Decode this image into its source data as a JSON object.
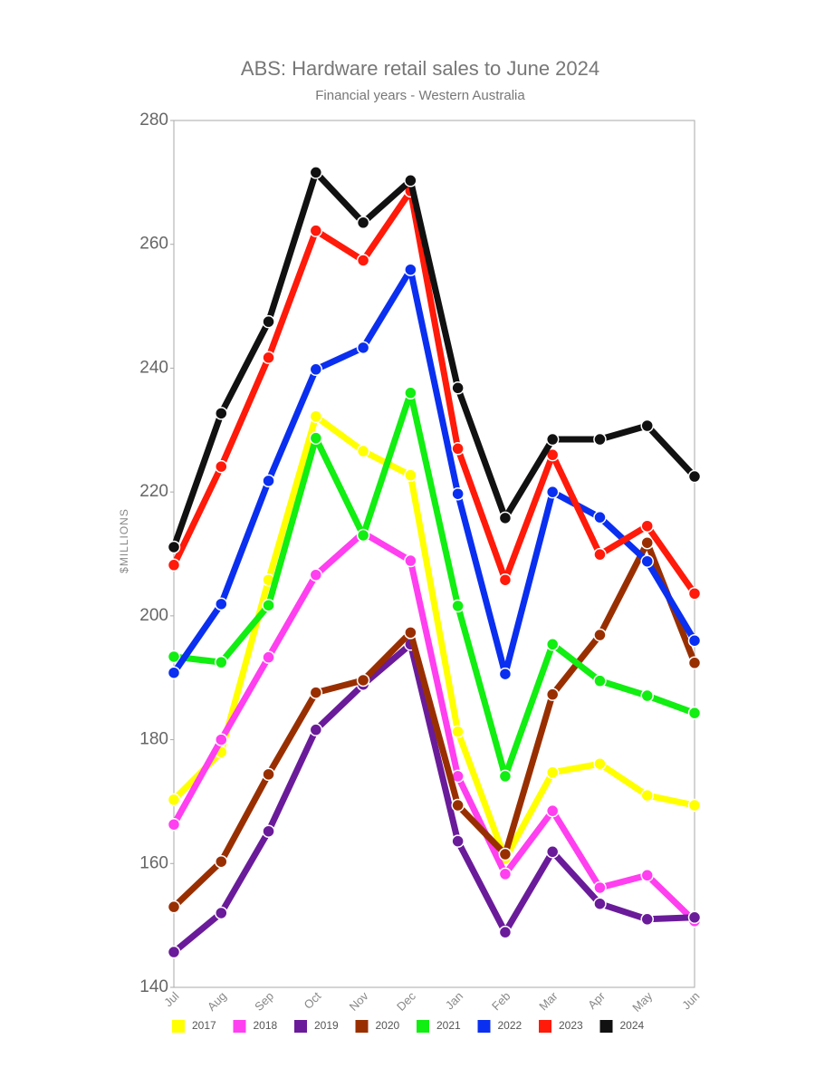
{
  "chart_data": {
    "type": "line",
    "title": "ABS: Hardware retail sales to June 2024",
    "subtitle": "Financial years - Western Australia",
    "y_label": "$MILLIONS",
    "categories": [
      "Jul",
      "Aug",
      "Sep",
      "Oct",
      "Nov",
      "Dec",
      "Jan",
      "Feb",
      "Mar",
      "Apr",
      "May",
      "Jun"
    ],
    "ylim": [
      140,
      280
    ],
    "yticks": [
      140,
      160,
      180,
      200,
      220,
      240,
      260,
      280
    ],
    "grid": false,
    "legend": "bottom",
    "series": [
      {
        "name": "2017",
        "color": "#ffff00",
        "values": [
          170.3,
          178,
          205.8,
          232.2,
          226.6,
          222.7,
          181.3,
          160.8,
          174.7,
          176.1,
          171,
          169.4
        ]
      },
      {
        "name": "2018",
        "color": "#ff3ff0",
        "values": [
          166.3,
          180,
          193.3,
          206.6,
          213.4,
          208.9,
          174.1,
          158.3,
          168.5,
          156.1,
          158.1,
          150.7
        ]
      },
      {
        "name": "2019",
        "color": "#6a1b9a",
        "values": [
          145.7,
          152,
          165.2,
          181.6,
          188.9,
          195.4,
          163.6,
          148.9,
          161.9,
          153.5,
          151,
          151.3
        ]
      },
      {
        "name": "2020",
        "color": "#992f00",
        "values": [
          153,
          160.3,
          174.4,
          187.6,
          189.6,
          197.3,
          169.4,
          161.5,
          187.3,
          196.9,
          211.8,
          192.4
        ]
      },
      {
        "name": "2021",
        "color": "#11ee11",
        "values": [
          193.4,
          192.5,
          201.7,
          228.7,
          213,
          236,
          201.6,
          174.1,
          195.4,
          189.5,
          187.1,
          184.3
        ]
      },
      {
        "name": "2022",
        "color": "#0a2ff0",
        "values": [
          190.8,
          201.9,
          221.8,
          239.8,
          243.3,
          255.9,
          219.7,
          190.6,
          220,
          215.9,
          208.8,
          196
        ]
      },
      {
        "name": "2023",
        "color": "#ff1a0a",
        "values": [
          208.2,
          224.1,
          241.7,
          262.2,
          257.4,
          268.6,
          227,
          205.8,
          226,
          209.9,
          214.5,
          203.6
        ]
      },
      {
        "name": "2024",
        "color": "#111111",
        "values": [
          211.1,
          232.7,
          247.5,
          271.6,
          263.5,
          270.3,
          236.8,
          215.8,
          228.5,
          228.5,
          230.7,
          222.5
        ]
      }
    ]
  }
}
